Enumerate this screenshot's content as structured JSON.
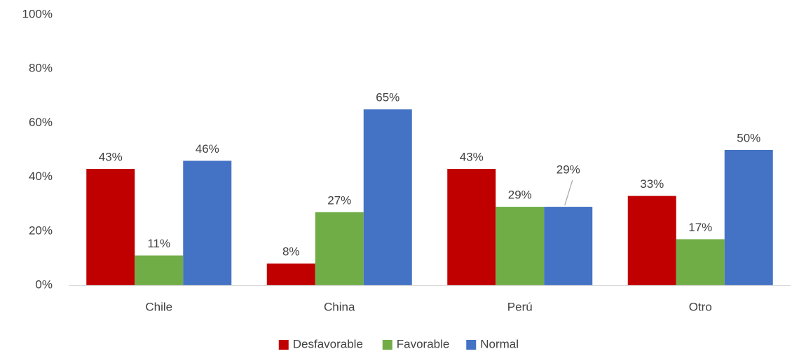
{
  "chart_data": {
    "type": "bar",
    "categories": [
      "Chile",
      "China",
      "Perú",
      "Otro"
    ],
    "series": [
      {
        "name": "Desfavorable",
        "color": "#c00000",
        "values": [
          43,
          8,
          43,
          33
        ],
        "labels": [
          "43%",
          "8%",
          "43%",
          "33%"
        ]
      },
      {
        "name": "Favorable",
        "color": "#70ad47",
        "values": [
          11,
          27,
          29,
          17
        ],
        "labels": [
          "11%",
          "27%",
          "29%",
          "17%"
        ]
      },
      {
        "name": "Normal",
        "color": "#4472c4",
        "values": [
          46,
          65,
          29,
          50
        ],
        "labels": [
          "46%",
          "65%",
          "29%",
          "50%"
        ]
      }
    ],
    "yticks": [
      "0%",
      "20%",
      "40%",
      "60%",
      "80%",
      "100%"
    ],
    "ylim": [
      0,
      100
    ],
    "grid": false,
    "legend": "bottom"
  }
}
